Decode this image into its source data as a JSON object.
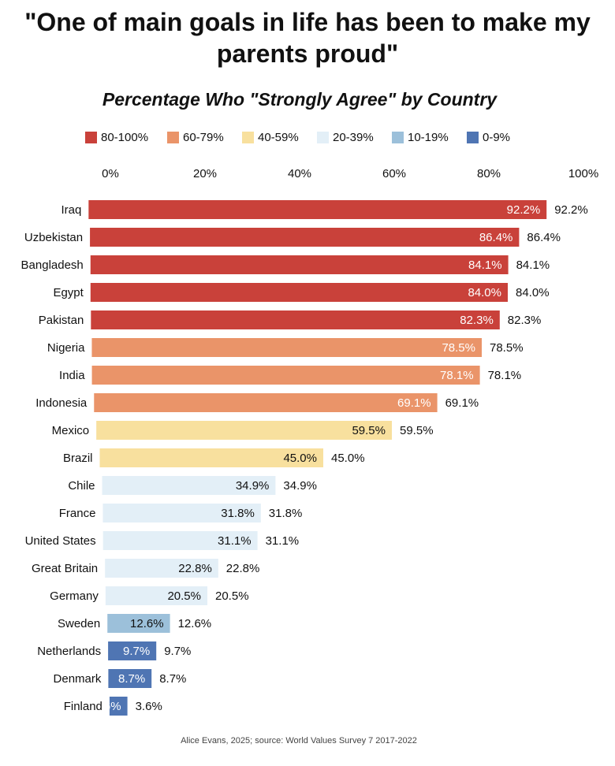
{
  "title_lines": [
    "\"One of main goals in life has been to make my",
    "parents proud\""
  ],
  "subtitle": "Percentage Who \"Strongly Agree\" by Country",
  "legend": [
    {
      "label": "80-100%",
      "color": "#c9413a"
    },
    {
      "label": "60-79%",
      "color": "#ea9469"
    },
    {
      "label": "40-59%",
      "color": "#f8e09e"
    },
    {
      "label": "20-39%",
      "color": "#e3eff7"
    },
    {
      "label": "10-19%",
      "color": "#9cc0da"
    },
    {
      "label": "0-9%",
      "color": "#4f75b3"
    }
  ],
  "footer": "Alice Evans, 2025; source: World Values Survey 7 2017-2022",
  "chart_data": {
    "type": "bar",
    "orientation": "horizontal",
    "title": "\"One of main goals in life has been to make my parents proud\"",
    "subtitle": "Percentage Who \"Strongly Agree\" by Country",
    "xlim": [
      0,
      100
    ],
    "xticks": [
      "0%",
      "20%",
      "40%",
      "60%",
      "80%",
      "100%"
    ],
    "xtick_values": [
      0,
      20,
      40,
      60,
      80,
      100
    ],
    "grid": false,
    "legend_position": "top",
    "categories": [
      "Iraq",
      "Uzbekistan",
      "Bangladesh",
      "Egypt",
      "Pakistan",
      "Nigeria",
      "India",
      "Indonesia",
      "Mexico",
      "Brazil",
      "Chile",
      "France",
      "United States",
      "Great Britain",
      "Germany",
      "Sweden",
      "Netherlands",
      "Denmark",
      "Finland"
    ],
    "values": [
      92.2,
      86.4,
      84.1,
      84.0,
      82.3,
      78.5,
      78.1,
      69.1,
      59.5,
      45.0,
      34.9,
      31.8,
      31.1,
      22.8,
      20.5,
      12.6,
      9.7,
      8.7,
      3.6
    ],
    "labels": [
      "92.2%",
      "86.4%",
      "84.1%",
      "84.0%",
      "82.3%",
      "78.5%",
      "78.1%",
      "69.1%",
      "59.5%",
      "45.0%",
      "34.9%",
      "31.8%",
      "31.1%",
      "22.8%",
      "20.5%",
      "12.6%",
      "9.7%",
      "8.7%",
      "3.6%"
    ],
    "colors": [
      "#c9413a",
      "#c9413a",
      "#c9413a",
      "#c9413a",
      "#c9413a",
      "#ea9469",
      "#ea9469",
      "#ea9469",
      "#f8e09e",
      "#f8e09e",
      "#e3eff7",
      "#e3eff7",
      "#e3eff7",
      "#e3eff7",
      "#e3eff7",
      "#9cc0da",
      "#4f75b3",
      "#4f75b3",
      "#4f75b3"
    ],
    "inner_label_colors": [
      "#ffffff",
      "#ffffff",
      "#ffffff",
      "#ffffff",
      "#ffffff",
      "#ffffff",
      "#ffffff",
      "#ffffff",
      "#111111",
      "#111111",
      "#111111",
      "#111111",
      "#111111",
      "#111111",
      "#111111",
      "#111111",
      "#ffffff",
      "#ffffff",
      "#ffffff"
    ]
  }
}
